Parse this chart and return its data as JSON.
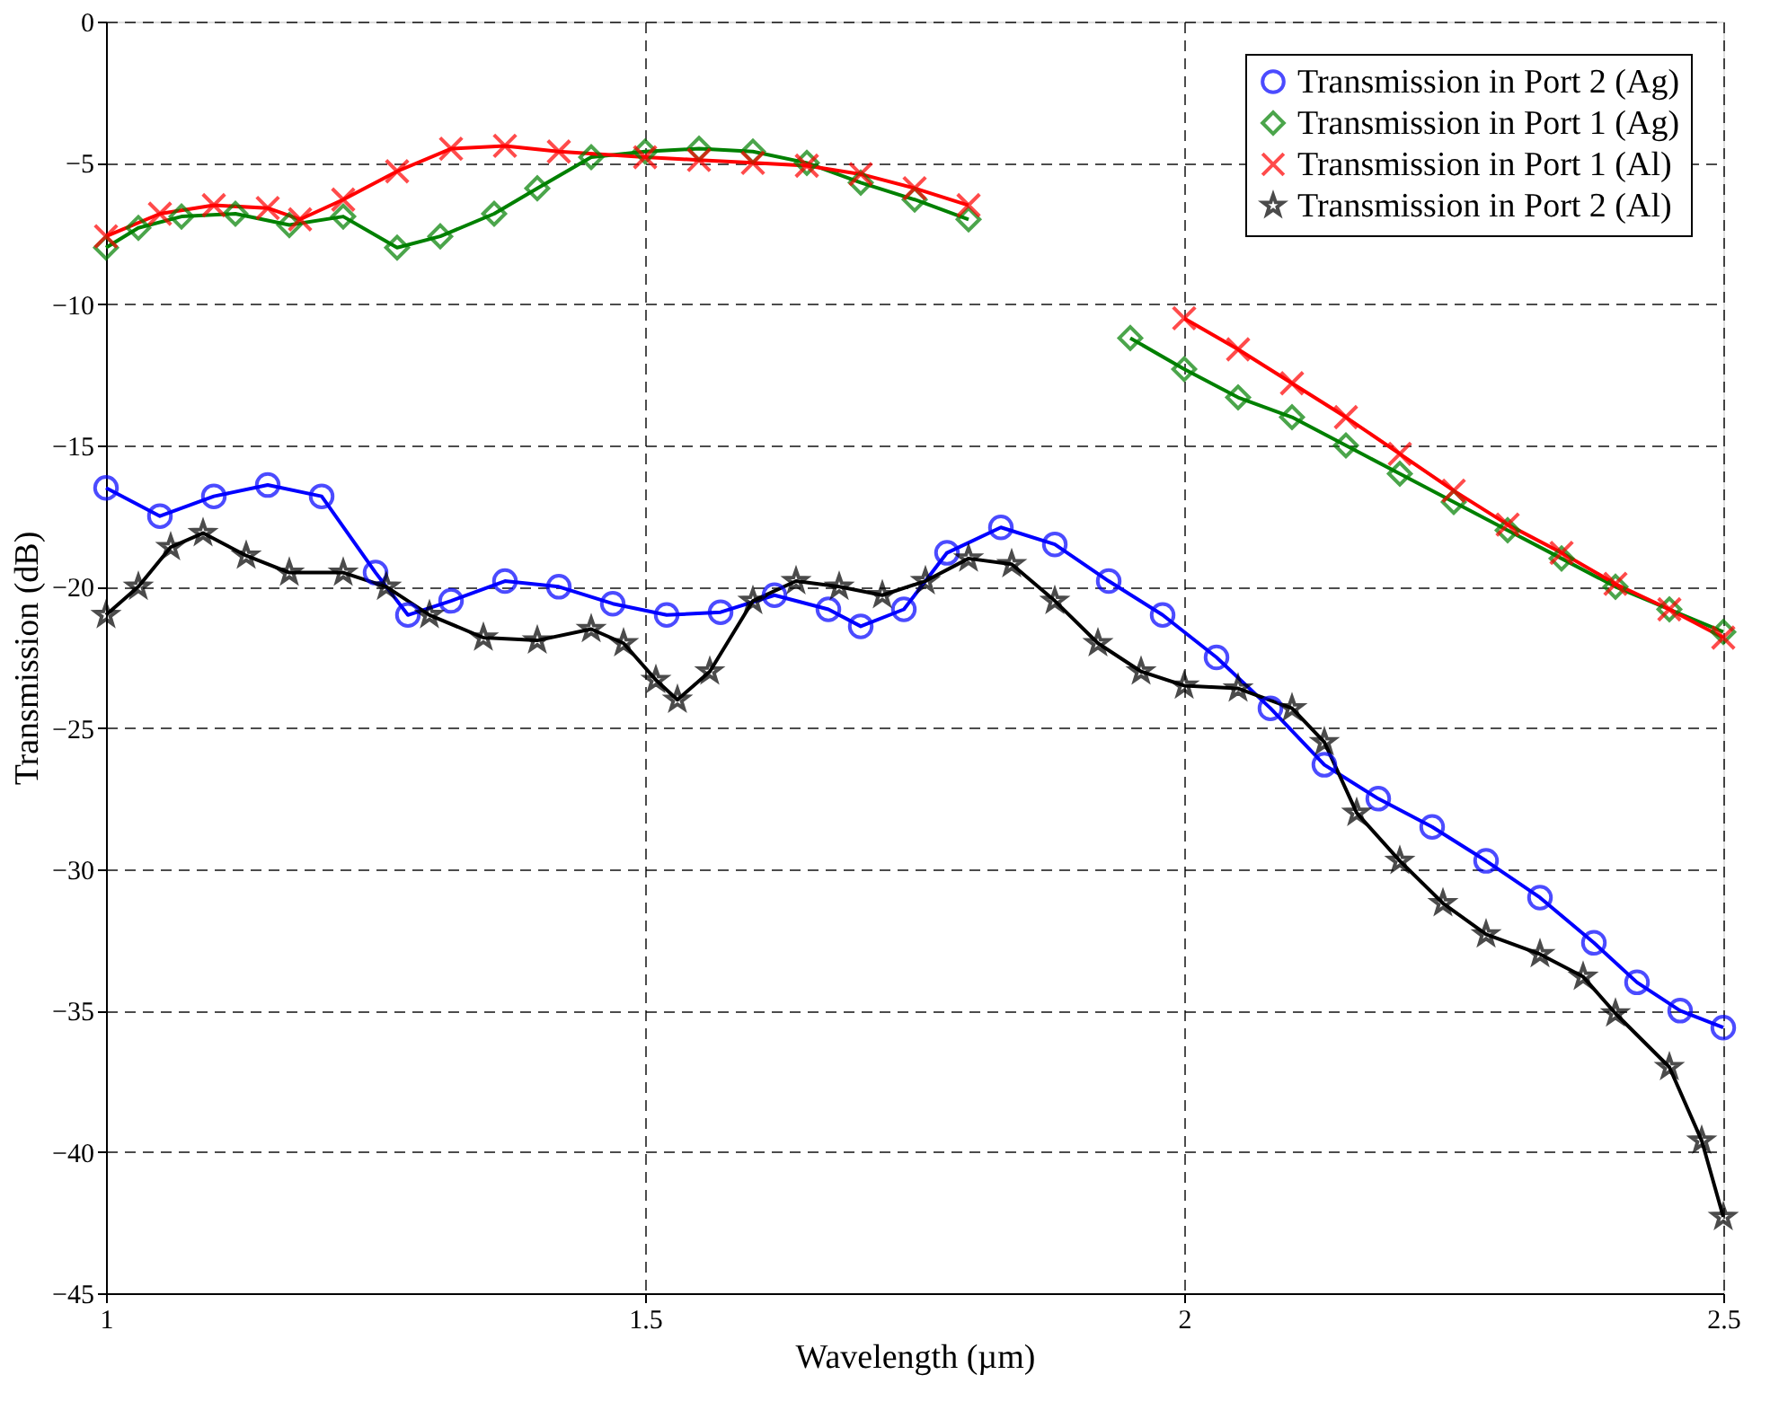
{
  "chart_data": {
    "type": "line",
    "xlabel": "Wavelength (µm)",
    "ylabel": "Transmission (dB)",
    "xlim": [
      1,
      2.5
    ],
    "xticks": [
      1,
      1.5,
      2,
      2.5
    ],
    "ylim": [
      -45,
      0
    ],
    "yticks": [
      -45,
      -40,
      -35,
      -30,
      -25,
      -20,
      -15,
      -10,
      -5,
      0
    ],
    "grid": true,
    "legend": "top right",
    "line_style": "solid",
    "series": [
      {
        "name": "Transmission in Port 2 (Ag)",
        "color": "#0000ff",
        "marker": "circle",
        "x": [
          1.0,
          1.05,
          1.1,
          1.15,
          1.2,
          1.25,
          1.28,
          1.32,
          1.37,
          1.42,
          1.47,
          1.52,
          1.57,
          1.62,
          1.67,
          1.7,
          1.74,
          1.78,
          1.83,
          1.88,
          1.93,
          1.98,
          2.03,
          2.08,
          2.13,
          2.18,
          2.23,
          2.28,
          2.33,
          2.38,
          2.42,
          2.46,
          2.5
        ],
        "values": [
          -16.5,
          -17.5,
          -16.8,
          -16.4,
          -16.8,
          -19.5,
          -21.0,
          -20.5,
          -19.8,
          -20.0,
          -20.6,
          -21.0,
          -20.9,
          -20.3,
          -20.8,
          -21.4,
          -20.8,
          -18.8,
          -17.9,
          -18.5,
          -19.8,
          -21.0,
          -22.5,
          -24.3,
          -26.3,
          -27.5,
          -28.5,
          -29.7,
          -31.0,
          -32.6,
          -34.0,
          -35.0,
          -35.6
        ]
      },
      {
        "name": "Transmission in Port 1 (Ag)",
        "color": "#008000",
        "marker": "diamond",
        "x": [
          1.0,
          1.03,
          1.07,
          1.12,
          1.17,
          1.22,
          1.27,
          1.31,
          1.36,
          1.4,
          1.45,
          1.5,
          1.55,
          1.6,
          1.65,
          1.7,
          1.75,
          1.8,
          1.85,
          1.9,
          1.95,
          2.0,
          2.05,
          2.1,
          2.15,
          2.2,
          2.25,
          2.3,
          2.35,
          2.4,
          2.45,
          2.5
        ],
        "values": [
          -8.0,
          -7.3,
          -6.9,
          -6.8,
          -7.2,
          -6.9,
          -8.0,
          -7.6,
          -6.8,
          -5.9,
          -4.8,
          -4.6,
          -4.5,
          -4.6,
          -5.0,
          -5.7,
          -6.3,
          -7.0,
          null,
          null,
          -11.2,
          -12.3,
          -13.3,
          -14.0,
          -15.0,
          -16.0,
          -17.0,
          -18.0,
          -19.0,
          -20.0,
          -20.8,
          -21.6
        ]
      },
      {
        "name": "Transmission in Port 1 (Al)",
        "color": "#ff0000",
        "marker": "cross",
        "x": [
          1.0,
          1.05,
          1.1,
          1.15,
          1.18,
          1.22,
          1.27,
          1.32,
          1.37,
          1.42,
          1.5,
          1.55,
          1.6,
          1.65,
          1.7,
          1.75,
          1.8,
          1.85,
          1.9,
          1.95,
          2.0,
          2.05,
          2.1,
          2.15,
          2.2,
          2.25,
          2.3,
          2.35,
          2.4,
          2.45,
          2.5
        ],
        "values": [
          -7.6,
          -6.8,
          -6.5,
          -6.6,
          -7.0,
          -6.3,
          -5.3,
          -4.5,
          -4.4,
          -4.6,
          -4.8,
          -4.9,
          -5.0,
          -5.1,
          -5.4,
          -5.9,
          -6.5,
          null,
          null,
          null,
          -10.5,
          -11.6,
          -12.8,
          -14.0,
          -15.3,
          -16.6,
          -17.8,
          -18.8,
          -19.9,
          -20.8,
          -21.8
        ]
      },
      {
        "name": "Transmission in Port 2 (Al)",
        "color": "#000000",
        "marker": "star",
        "x": [
          1.0,
          1.03,
          1.06,
          1.09,
          1.13,
          1.17,
          1.22,
          1.26,
          1.3,
          1.35,
          1.4,
          1.45,
          1.48,
          1.51,
          1.53,
          1.56,
          1.6,
          1.64,
          1.68,
          1.72,
          1.76,
          1.8,
          1.84,
          1.88,
          1.92,
          1.96,
          2.0,
          2.05,
          2.1,
          2.13,
          2.16,
          2.2,
          2.24,
          2.28,
          2.33,
          2.37,
          2.4,
          2.45,
          2.48,
          2.5
        ],
        "values": [
          -21.0,
          -20.0,
          -18.6,
          -18.1,
          -18.9,
          -19.5,
          -19.5,
          -20.0,
          -21.0,
          -21.8,
          -21.9,
          -21.5,
          -22.0,
          -23.3,
          -24.0,
          -23.0,
          -20.5,
          -19.8,
          -20.0,
          -20.3,
          -19.8,
          -19.0,
          -19.2,
          -20.5,
          -22.0,
          -23.0,
          -23.5,
          -23.6,
          -24.3,
          -25.5,
          -28.0,
          -29.7,
          -31.2,
          -32.3,
          -33.0,
          -33.8,
          -35.1,
          -37.0,
          -39.6,
          -42.3
        ]
      }
    ]
  }
}
